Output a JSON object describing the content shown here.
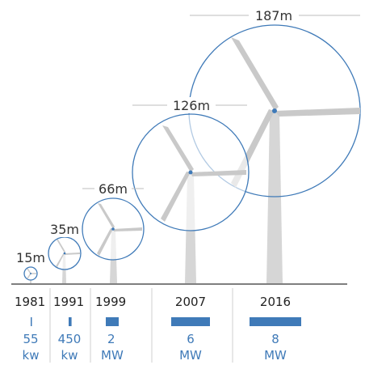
{
  "colors": {
    "accent": "#3f7ab8",
    "tower": "#d6d6d6",
    "blade": "#c9c9c9",
    "line": "#bdbdbd",
    "text": "#333333"
  },
  "turbines": [
    {
      "year": "1981",
      "diameter": "15m",
      "power_value": "55",
      "power_unit": "kw",
      "power_amount_kw": 55
    },
    {
      "year": "1991",
      "diameter": "35m",
      "power_value": "450",
      "power_unit": "kw",
      "power_amount_kw": 450
    },
    {
      "year": "1999",
      "diameter": "66m",
      "power_value": "2",
      "power_unit": "MW",
      "power_amount_kw": 2000
    },
    {
      "year": "2007",
      "diameter": "126m",
      "power_value": "6",
      "power_unit": "MW",
      "power_amount_kw": 6000
    },
    {
      "year": "2016",
      "diameter": "187m",
      "power_value": "8",
      "power_unit": "MW",
      "power_amount_kw": 8000
    }
  ]
}
